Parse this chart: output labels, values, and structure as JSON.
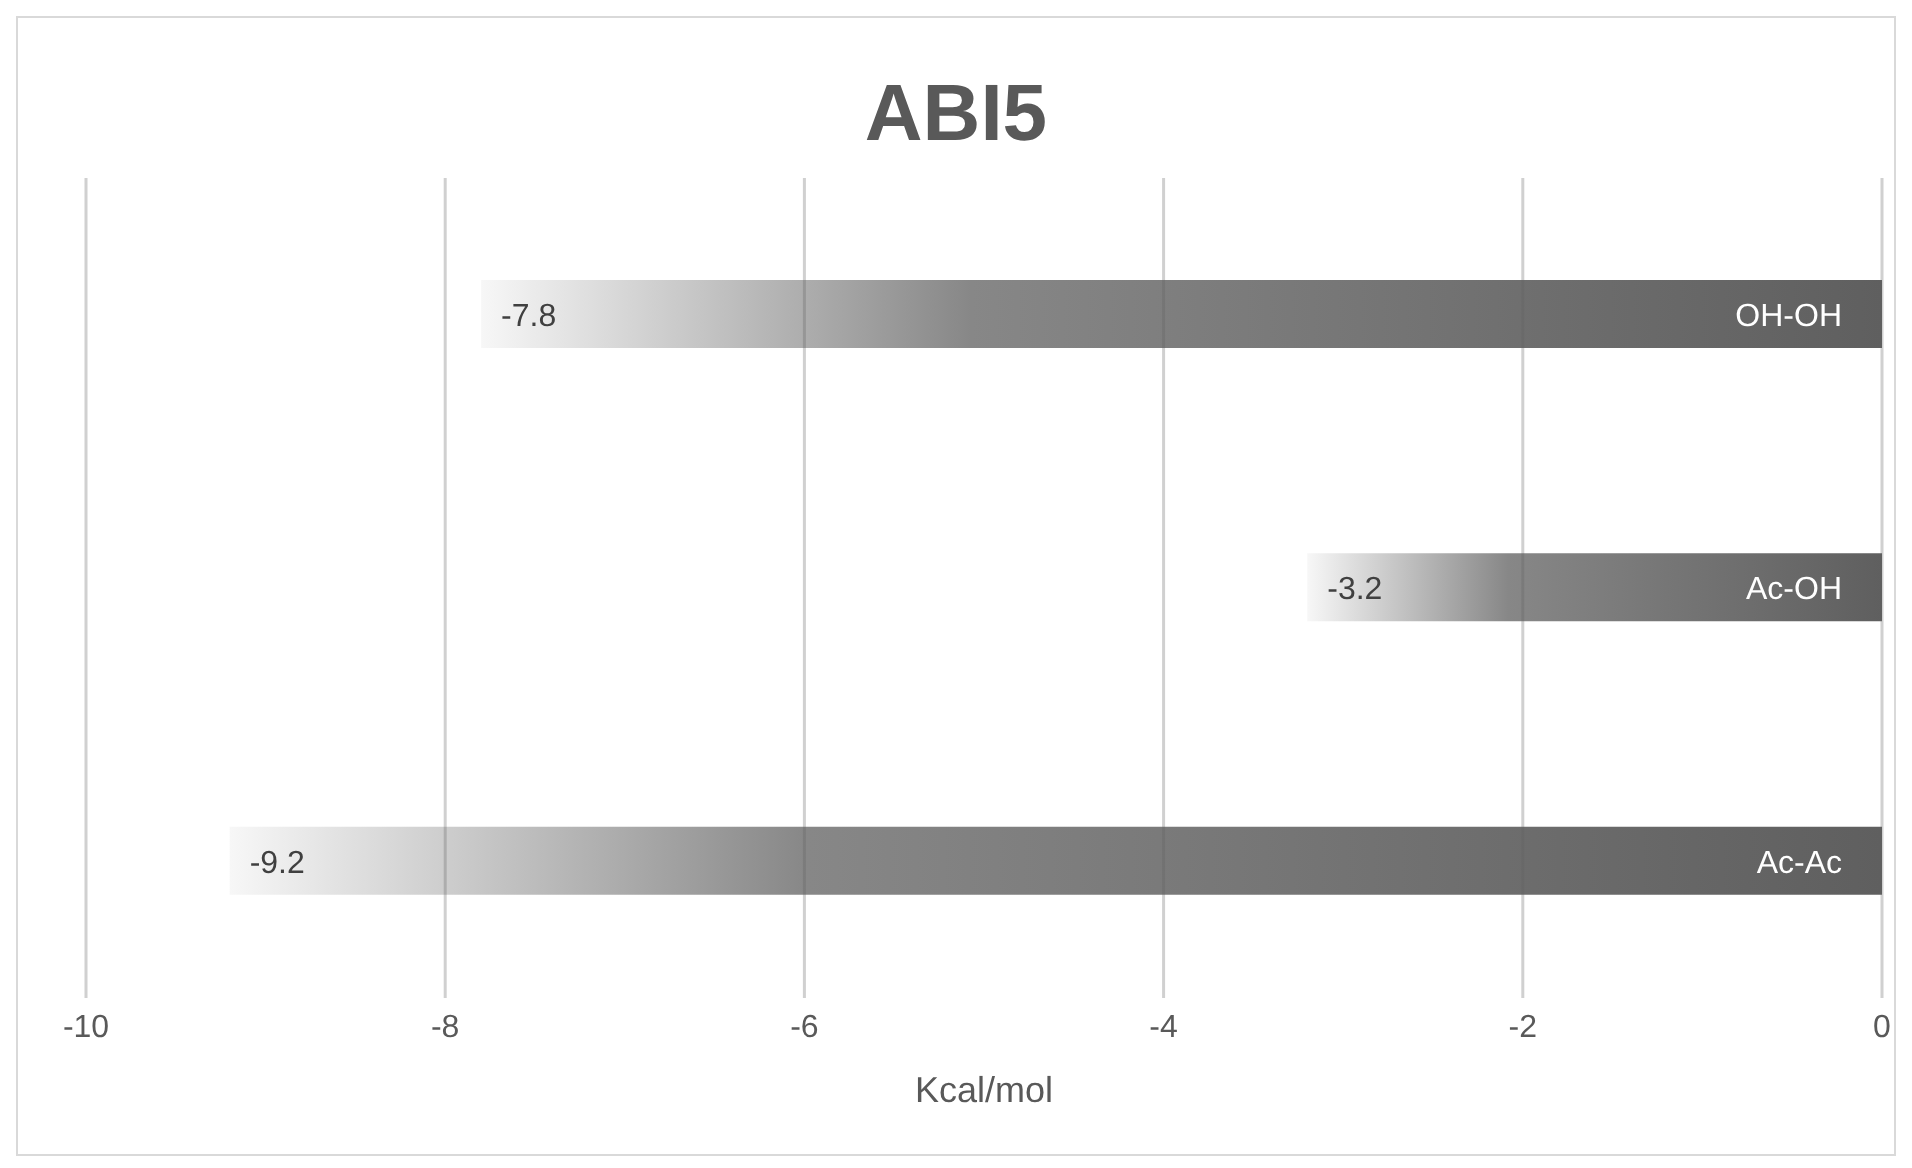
{
  "chart_data": {
    "type": "bar",
    "orientation": "horizontal",
    "title": "ABI5",
    "xlabel": "Kcal/mol",
    "categories": [
      "OH-OH",
      "Ac-OH",
      "Ac-Ac"
    ],
    "series": [
      {
        "color": "#5f5f5f",
        "values": [
          -7.8,
          -3.2,
          -9.2
        ]
      }
    ],
    "xlim": [
      -10,
      0
    ],
    "xticks": [
      -10,
      -8,
      -6,
      -4,
      -2,
      0
    ],
    "grid": "x",
    "data_labels": true
  }
}
